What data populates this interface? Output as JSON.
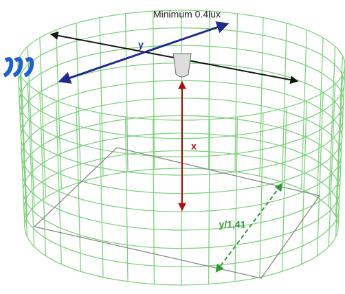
{
  "labels": {
    "illuminance": "Minimum 0.4lux",
    "diameter": "y",
    "height": "x",
    "side": "y/1,41"
  }
}
